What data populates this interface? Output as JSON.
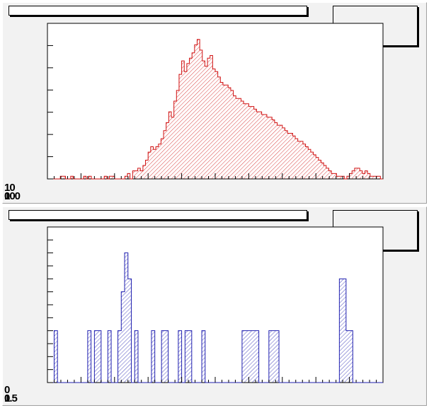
{
  "chart_data": [
    {
      "type": "bar",
      "style": "histogram",
      "color": "#d01010",
      "fill_pattern": "diagonal-hatch",
      "xlim": [
        0,
        100
      ],
      "ylim": [
        0,
        58
      ],
      "ytick_count": 7,
      "values": [
        0,
        0,
        0,
        0,
        0,
        1,
        1,
        0,
        0,
        1,
        0,
        0,
        0,
        0,
        1,
        0,
        1,
        0,
        0,
        0,
        0,
        0,
        1,
        0,
        1,
        1,
        0,
        0,
        0,
        0,
        1,
        2,
        0,
        3,
        3,
        4,
        3,
        5,
        7,
        10,
        12,
        11,
        12,
        13,
        15,
        18,
        21,
        25,
        23,
        29,
        33,
        39,
        44,
        40,
        43,
        45,
        47,
        50,
        52,
        48,
        44,
        42,
        45,
        46,
        41,
        40,
        38,
        36,
        35,
        35,
        34,
        33,
        31,
        30,
        30,
        29,
        28,
        28,
        27,
        27,
        26,
        25,
        25,
        24,
        24,
        23,
        23,
        22,
        21,
        20,
        20,
        19,
        18,
        17,
        17,
        16,
        15,
        14,
        14,
        13,
        12,
        11,
        10,
        9,
        8,
        7,
        6,
        5,
        4,
        3,
        2,
        2,
        1,
        1,
        1,
        0,
        1,
        2,
        3,
        4,
        4,
        3,
        2,
        3,
        2,
        1,
        1,
        1,
        1,
        0
      ],
      "xtick_labels": [
        "0",
        "100"
      ],
      "ytick_labels": [
        "10",
        "10"
      ]
    },
    {
      "type": "bar",
      "style": "histogram",
      "color": "#2020b0",
      "fill_pattern": "diagonal-hatch",
      "xlim": [
        0,
        1
      ],
      "ylim": [
        0,
        12
      ],
      "ytick_count": 12,
      "values": [
        0,
        0,
        4,
        0,
        0,
        0,
        0,
        0,
        0,
        0,
        0,
        0,
        4,
        0,
        4,
        4,
        0,
        0,
        4,
        0,
        0,
        4,
        7,
        10,
        8,
        0,
        4,
        0,
        0,
        0,
        0,
        4,
        0,
        0,
        4,
        4,
        0,
        0,
        0,
        4,
        0,
        4,
        4,
        0,
        0,
        0,
        4,
        0,
        0,
        0,
        0,
        0,
        0,
        0,
        0,
        0,
        0,
        0,
        4,
        4,
        4,
        4,
        4,
        0,
        0,
        0,
        4,
        4,
        4,
        0,
        0,
        0,
        0,
        0,
        0,
        0,
        0,
        0,
        0,
        0,
        0,
        0,
        0,
        0,
        0,
        0,
        0,
        8,
        8,
        4,
        4,
        0,
        0,
        0,
        0,
        0,
        0,
        0,
        0,
        0
      ],
      "xtick_labels": [
        "0",
        "1.5"
      ],
      "ytick_labels": [
        "0",
        "0"
      ]
    }
  ]
}
